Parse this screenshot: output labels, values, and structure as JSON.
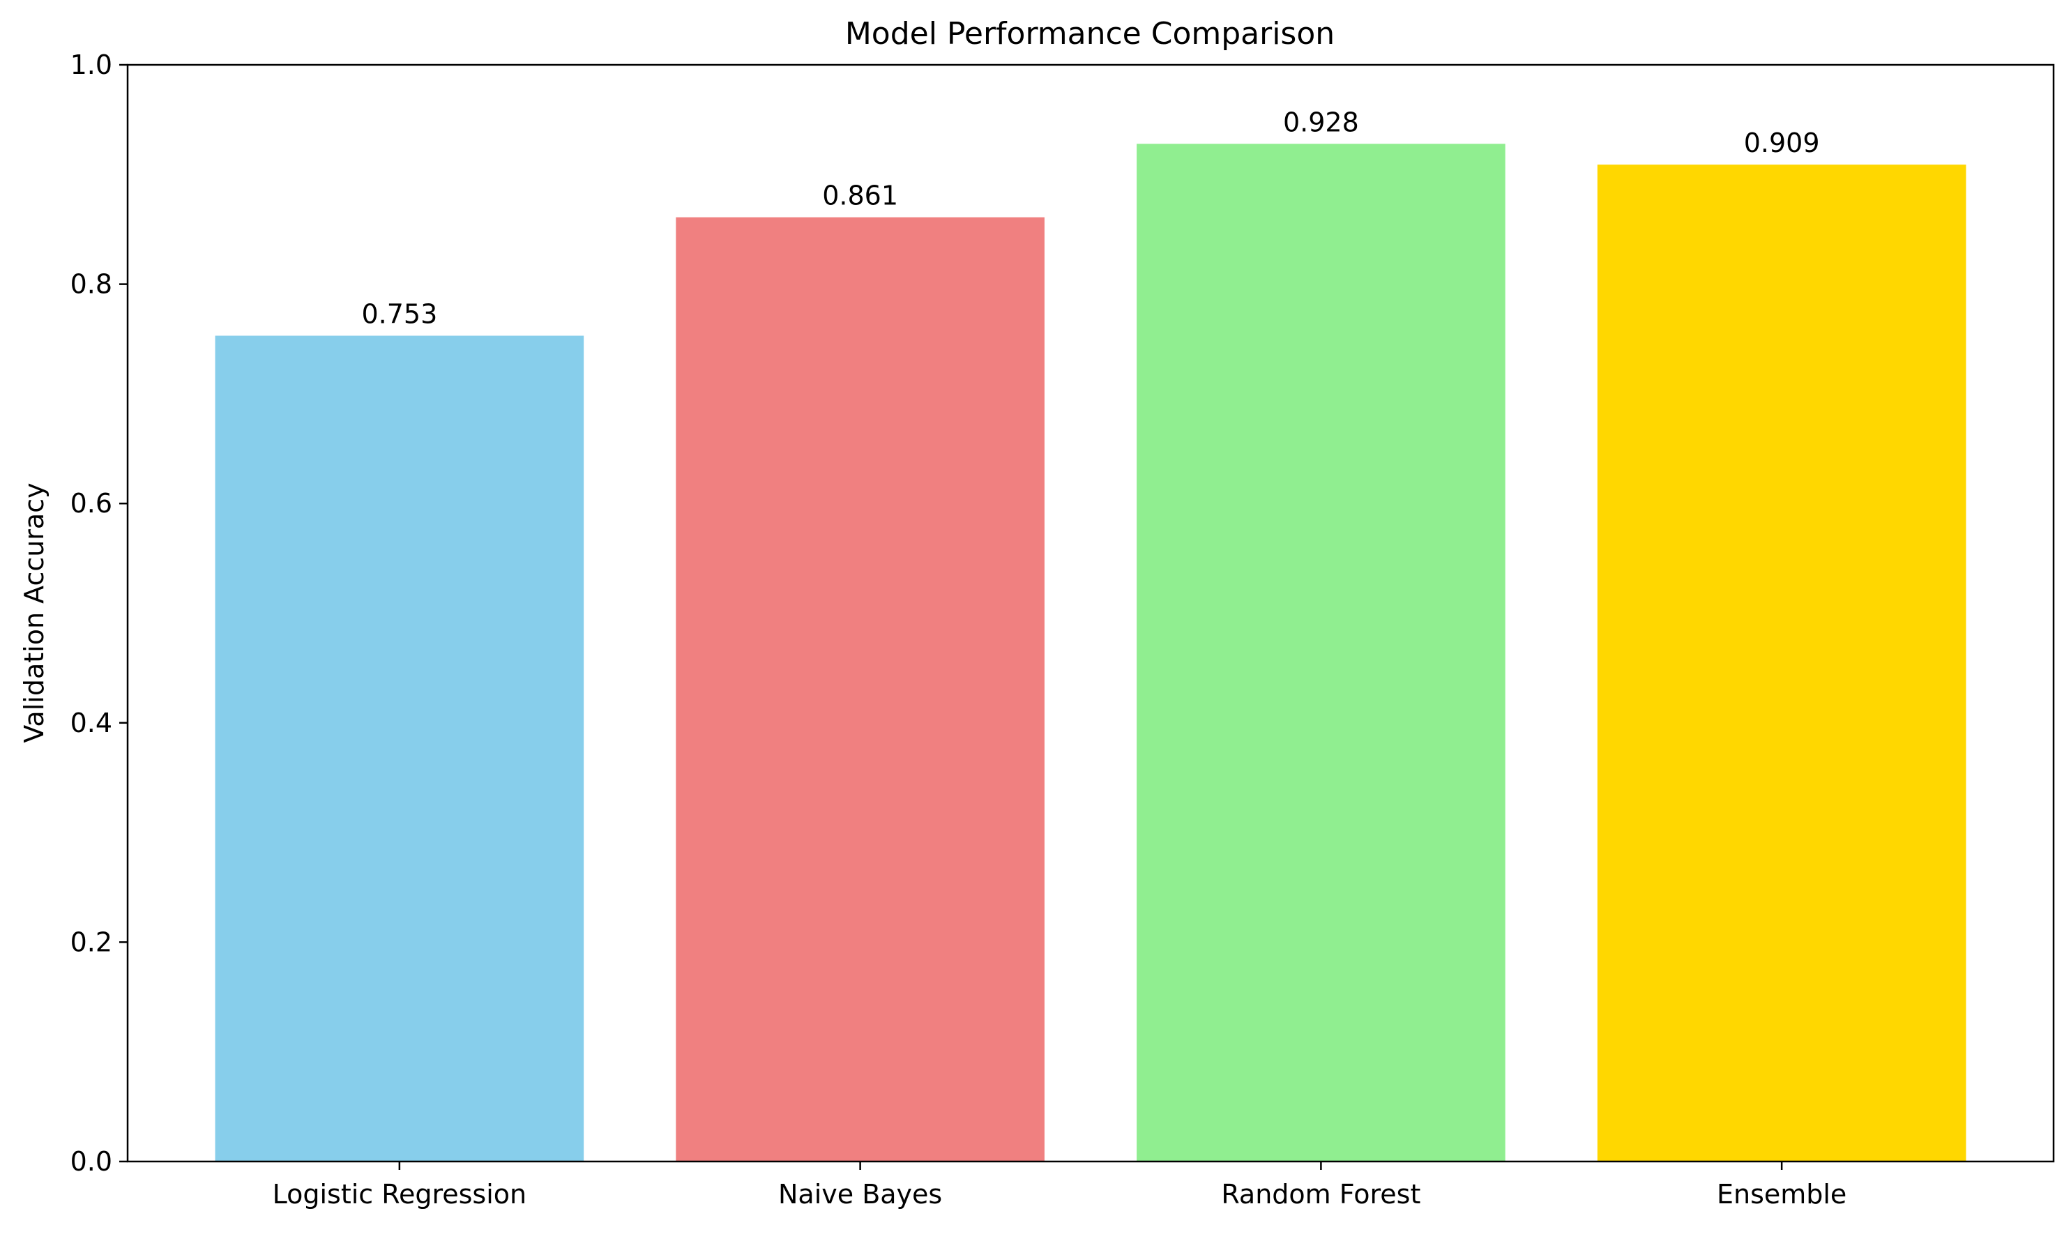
{
  "chart_data": {
    "type": "bar",
    "title": "Model Performance Comparison",
    "xlabel": "",
    "ylabel": "Validation Accuracy",
    "categories": [
      "Logistic Regression",
      "Naive Bayes",
      "Random Forest",
      "Ensemble"
    ],
    "values": [
      0.753,
      0.861,
      0.928,
      0.909
    ],
    "value_labels": [
      "0.753",
      "0.861",
      "0.928",
      "0.909"
    ],
    "colors": [
      "#87CEEB",
      "#F08080",
      "#90EE90",
      "#FFD700"
    ],
    "ylim": [
      0,
      1.0
    ],
    "yticks": [
      0.0,
      0.2,
      0.4,
      0.6,
      0.8,
      1.0
    ],
    "ytick_labels": [
      "0.0",
      "0.2",
      "0.4",
      "0.6",
      "0.8",
      "1.0"
    ],
    "grid": false,
    "legend": "none"
  }
}
